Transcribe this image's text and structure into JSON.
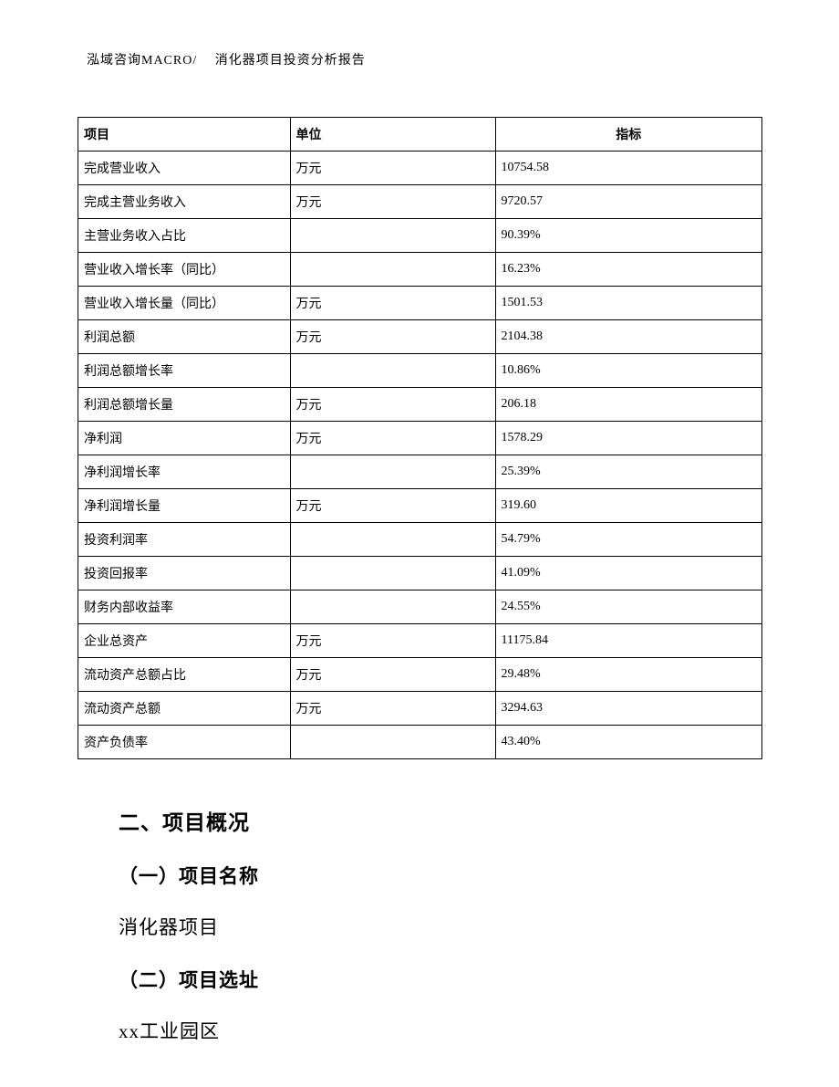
{
  "header": {
    "text": "泓域咨询MACRO/　 消化器项目投资分析报告"
  },
  "table": {
    "columns": [
      "项目",
      "单位",
      "指标"
    ],
    "rows": [
      [
        "完成营业收入",
        "万元",
        "10754.58"
      ],
      [
        "完成主营业务收入",
        "万元",
        "9720.57"
      ],
      [
        "主营业务收入占比",
        "",
        "90.39%"
      ],
      [
        "营业收入增长率（同比）",
        "",
        "16.23%"
      ],
      [
        "营业收入增长量（同比）",
        "万元",
        "1501.53"
      ],
      [
        "利润总额",
        "万元",
        "2104.38"
      ],
      [
        "利润总额增长率",
        "",
        "10.86%"
      ],
      [
        "利润总额增长量",
        "万元",
        "206.18"
      ],
      [
        "净利润",
        "万元",
        "1578.29"
      ],
      [
        "净利润增长率",
        "",
        "25.39%"
      ],
      [
        "净利润增长量",
        "万元",
        "319.60"
      ],
      [
        "投资利润率",
        "",
        "54.79%"
      ],
      [
        "投资回报率",
        "",
        "41.09%"
      ],
      [
        "财务内部收益率",
        "",
        "24.55%"
      ],
      [
        "企业总资产",
        "万元",
        "11175.84"
      ],
      [
        "流动资产总额占比",
        "万元",
        "29.48%"
      ],
      [
        "流动资产总额",
        "万元",
        "3294.63"
      ],
      [
        "资产负债率",
        "",
        "43.40%"
      ]
    ]
  },
  "sections": {
    "h1": "二、项目概况",
    "h2a": "（一）项目名称",
    "p1": "消化器项目",
    "h2b": "（二）项目选址",
    "p2": "xx工业园区"
  }
}
